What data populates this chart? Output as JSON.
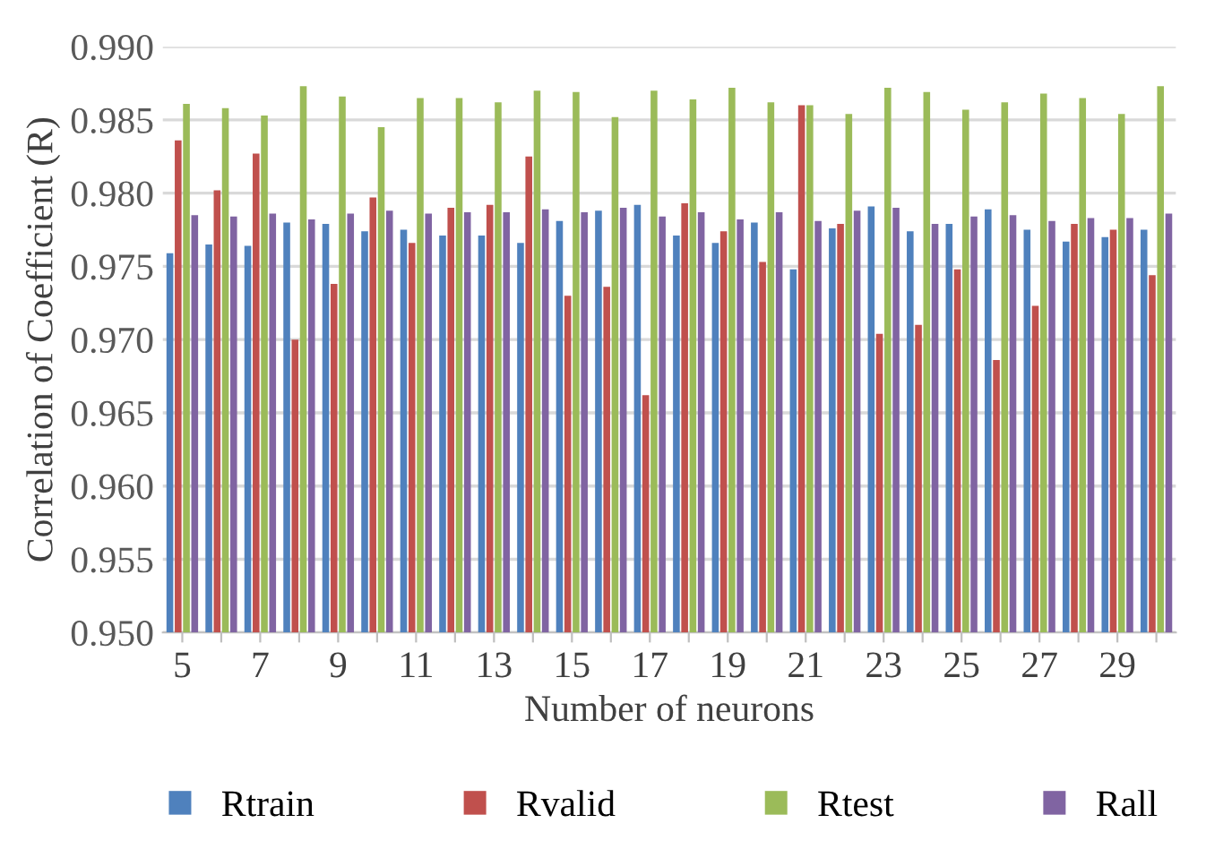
{
  "chart_data": {
    "type": "bar",
    "xlabel": "Number of neurons",
    "ylabel": "Correlation of Coefficient (R)",
    "categories": [
      "5",
      null,
      "7",
      null,
      "9",
      null,
      "11",
      null,
      "13",
      null,
      "15",
      null,
      "17",
      null,
      "19",
      null,
      "21",
      null,
      "23",
      null,
      "25",
      null,
      "27",
      null,
      "29",
      null
    ],
    "series": [
      {
        "name": "Rtrain",
        "color": "#4f81bd",
        "values": [
          0.9759,
          0.9765,
          0.9764,
          0.978,
          0.9779,
          0.9774,
          0.9775,
          0.9771,
          0.9771,
          0.9766,
          0.9781,
          0.9788,
          0.9792,
          0.9771,
          0.9766,
          0.978,
          0.9748,
          0.9776,
          0.9791,
          0.9774,
          0.9779,
          0.9789,
          0.9775,
          0.9767,
          0.977,
          0.9775
        ]
      },
      {
        "name": "Rvalid",
        "color": "#c0504d",
        "values": [
          0.9836,
          0.9802,
          0.9827,
          0.97,
          0.9738,
          0.9797,
          0.9766,
          0.979,
          0.9792,
          0.9825,
          0.973,
          0.9736,
          0.9662,
          0.9793,
          0.9774,
          0.9753,
          0.986,
          0.9779,
          0.9704,
          0.971,
          0.9748,
          0.9686,
          0.9723,
          0.9779,
          0.9775,
          0.9744
        ]
      },
      {
        "name": "Rtest",
        "color": "#9bbb59",
        "values": [
          0.9861,
          0.9858,
          0.9853,
          0.9873,
          0.9866,
          0.9845,
          0.9865,
          0.9865,
          0.9862,
          0.987,
          0.9869,
          0.9852,
          0.987,
          0.9864,
          0.9872,
          0.9862,
          0.986,
          0.9854,
          0.9872,
          0.9869,
          0.9857,
          0.9862,
          0.9868,
          0.9865,
          0.9854,
          0.9873
        ]
      },
      {
        "name": "Rall",
        "color": "#8064a2",
        "values": [
          0.9785,
          0.9784,
          0.9786,
          0.9782,
          0.9786,
          0.9788,
          0.9786,
          0.9787,
          0.9787,
          0.9789,
          0.9787,
          0.979,
          0.9784,
          0.9787,
          0.9782,
          0.9787,
          0.9781,
          0.9788,
          0.979,
          0.9779,
          0.9784,
          0.9785,
          0.9781,
          0.9783,
          0.9783,
          0.9786
        ]
      }
    ],
    "ylim": [
      0.95,
      0.99
    ],
    "yticks": [
      {
        "value": 0.95,
        "label": "0.950"
      },
      {
        "value": 0.955,
        "label": "0.955"
      },
      {
        "value": 0.96,
        "label": "0.960"
      },
      {
        "value": 0.965,
        "label": "0.965"
      },
      {
        "value": 0.97,
        "label": "0.970"
      },
      {
        "value": 0.975,
        "label": "0.975"
      },
      {
        "value": 0.98,
        "label": "0.980"
      },
      {
        "value": 0.985,
        "label": "0.985"
      },
      {
        "value": 0.99,
        "label": "0.990"
      }
    ],
    "grid": "y",
    "legend": "bottom"
  }
}
